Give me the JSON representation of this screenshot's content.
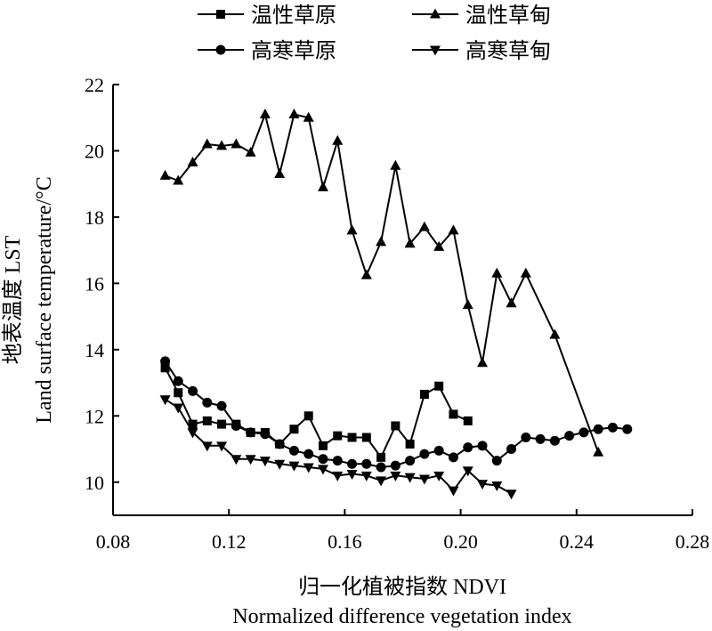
{
  "chart_data": {
    "type": "line",
    "xlabel_cn": "归一化植被指数 NDVI",
    "xlabel_en": "Normalized difference vegetation index",
    "ylabel_cn": "地表温度 LST",
    "ylabel_en": "Land surface temperature/°C",
    "xlim": [
      0.08,
      0.28
    ],
    "ylim": [
      9,
      22
    ],
    "xticks": [
      "0.08",
      "0.12",
      "0.16",
      "0.20",
      "0.24",
      "0.28"
    ],
    "yticks": [
      "10",
      "12",
      "14",
      "16",
      "18",
      "20",
      "22"
    ],
    "grid": false,
    "legend": "top",
    "series": [
      {
        "name": "温性草原",
        "marker": "square",
        "x": [
          0.098,
          0.1025,
          0.1075,
          0.1125,
          0.1175,
          0.1225,
          0.1275,
          0.1325,
          0.1375,
          0.1425,
          0.1475,
          0.1525,
          0.1575,
          0.1625,
          0.1675,
          0.1725,
          0.1775,
          0.1825,
          0.1875,
          0.1925,
          0.1975,
          0.2025
        ],
        "y": [
          13.45,
          12.7,
          11.75,
          11.85,
          11.75,
          11.75,
          11.5,
          11.5,
          11.15,
          11.6,
          12.0,
          11.1,
          11.4,
          11.35,
          11.35,
          10.75,
          11.7,
          11.15,
          12.65,
          12.9,
          12.05,
          11.85
        ]
      },
      {
        "name": "温性草甸",
        "marker": "triangle-up",
        "x": [
          0.098,
          0.1025,
          0.1075,
          0.1125,
          0.1175,
          0.1225,
          0.1275,
          0.1325,
          0.1375,
          0.1425,
          0.1475,
          0.1525,
          0.1575,
          0.1625,
          0.1675,
          0.1725,
          0.1775,
          0.1825,
          0.1875,
          0.1925,
          0.1975,
          0.2025,
          0.2075,
          0.2125,
          0.2175,
          0.2225,
          0.2325,
          0.2475
        ],
        "y": [
          19.25,
          19.1,
          19.65,
          20.2,
          20.15,
          20.2,
          19.95,
          21.1,
          19.3,
          21.1,
          21.0,
          18.9,
          20.3,
          17.6,
          16.25,
          17.25,
          19.55,
          17.2,
          17.7,
          17.1,
          17.6,
          15.35,
          13.6,
          16.3,
          15.4,
          16.3,
          14.45,
          10.9
        ]
      },
      {
        "name": "高寒草原",
        "marker": "circle",
        "x": [
          0.098,
          0.1025,
          0.1075,
          0.1125,
          0.1175,
          0.1225,
          0.1275,
          0.1325,
          0.1375,
          0.1425,
          0.1475,
          0.1525,
          0.1575,
          0.1625,
          0.1675,
          0.1725,
          0.1775,
          0.1825,
          0.1875,
          0.1925,
          0.1975,
          0.2025,
          0.2075,
          0.2125,
          0.2175,
          0.2225,
          0.2275,
          0.2325,
          0.2375,
          0.2425,
          0.2475,
          0.2525,
          0.2575
        ],
        "y": [
          13.65,
          13.05,
          12.75,
          12.4,
          12.3,
          11.7,
          11.5,
          11.45,
          11.15,
          10.95,
          10.85,
          10.7,
          10.65,
          10.55,
          10.55,
          10.45,
          10.5,
          10.65,
          10.85,
          10.95,
          10.75,
          11.05,
          11.1,
          10.65,
          11.0,
          11.35,
          11.3,
          11.25,
          11.4,
          11.5,
          11.6,
          11.65,
          11.6
        ]
      },
      {
        "name": "高寒草甸",
        "marker": "triangle-down",
        "x": [
          0.098,
          0.1025,
          0.1075,
          0.1125,
          0.1175,
          0.1225,
          0.1275,
          0.1325,
          0.1375,
          0.1425,
          0.1475,
          0.1525,
          0.1575,
          0.1625,
          0.1675,
          0.1725,
          0.1775,
          0.1825,
          0.1875,
          0.1925,
          0.1975,
          0.2025,
          0.2075,
          0.2125,
          0.2175
        ],
        "y": [
          12.5,
          12.25,
          11.5,
          11.1,
          11.1,
          10.7,
          10.7,
          10.65,
          10.55,
          10.5,
          10.45,
          10.4,
          10.2,
          10.25,
          10.2,
          10.05,
          10.2,
          10.15,
          10.1,
          10.2,
          9.75,
          10.35,
          9.95,
          9.9,
          9.65
        ]
      }
    ]
  }
}
